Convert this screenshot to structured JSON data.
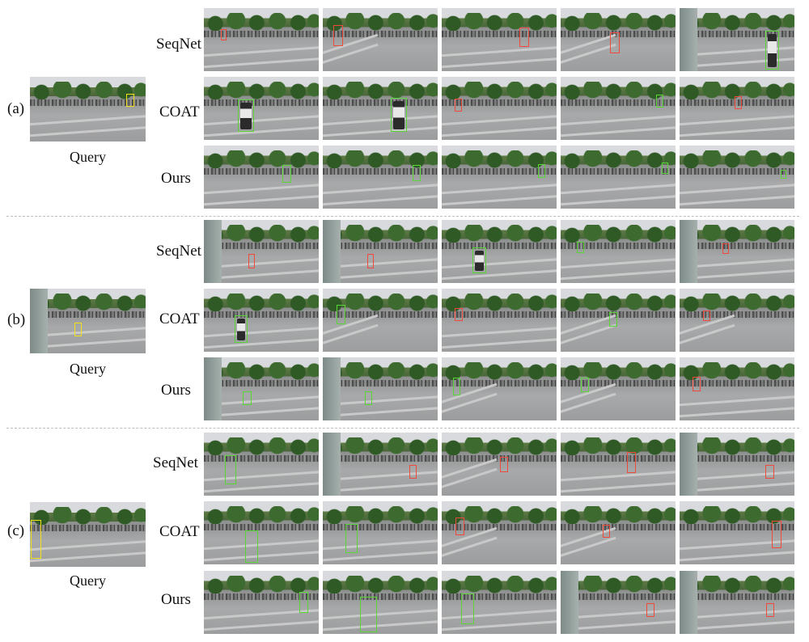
{
  "sections": [
    {
      "label": "(a)",
      "query_caption": "Query",
      "methods": [
        "SeqNet",
        "COAT",
        "Ours"
      ]
    },
    {
      "label": "(b)",
      "query_caption": "Query",
      "methods": [
        "SeqNet",
        "COAT",
        "Ours"
      ]
    },
    {
      "label": "(c)",
      "query_caption": "Query",
      "methods": [
        "SeqNet",
        "COAT",
        "Ours"
      ]
    }
  ],
  "box_colors": {
    "query": "#f2e21c",
    "correct_match": "#58d636",
    "wrong_match": "#ef4a3c"
  }
}
